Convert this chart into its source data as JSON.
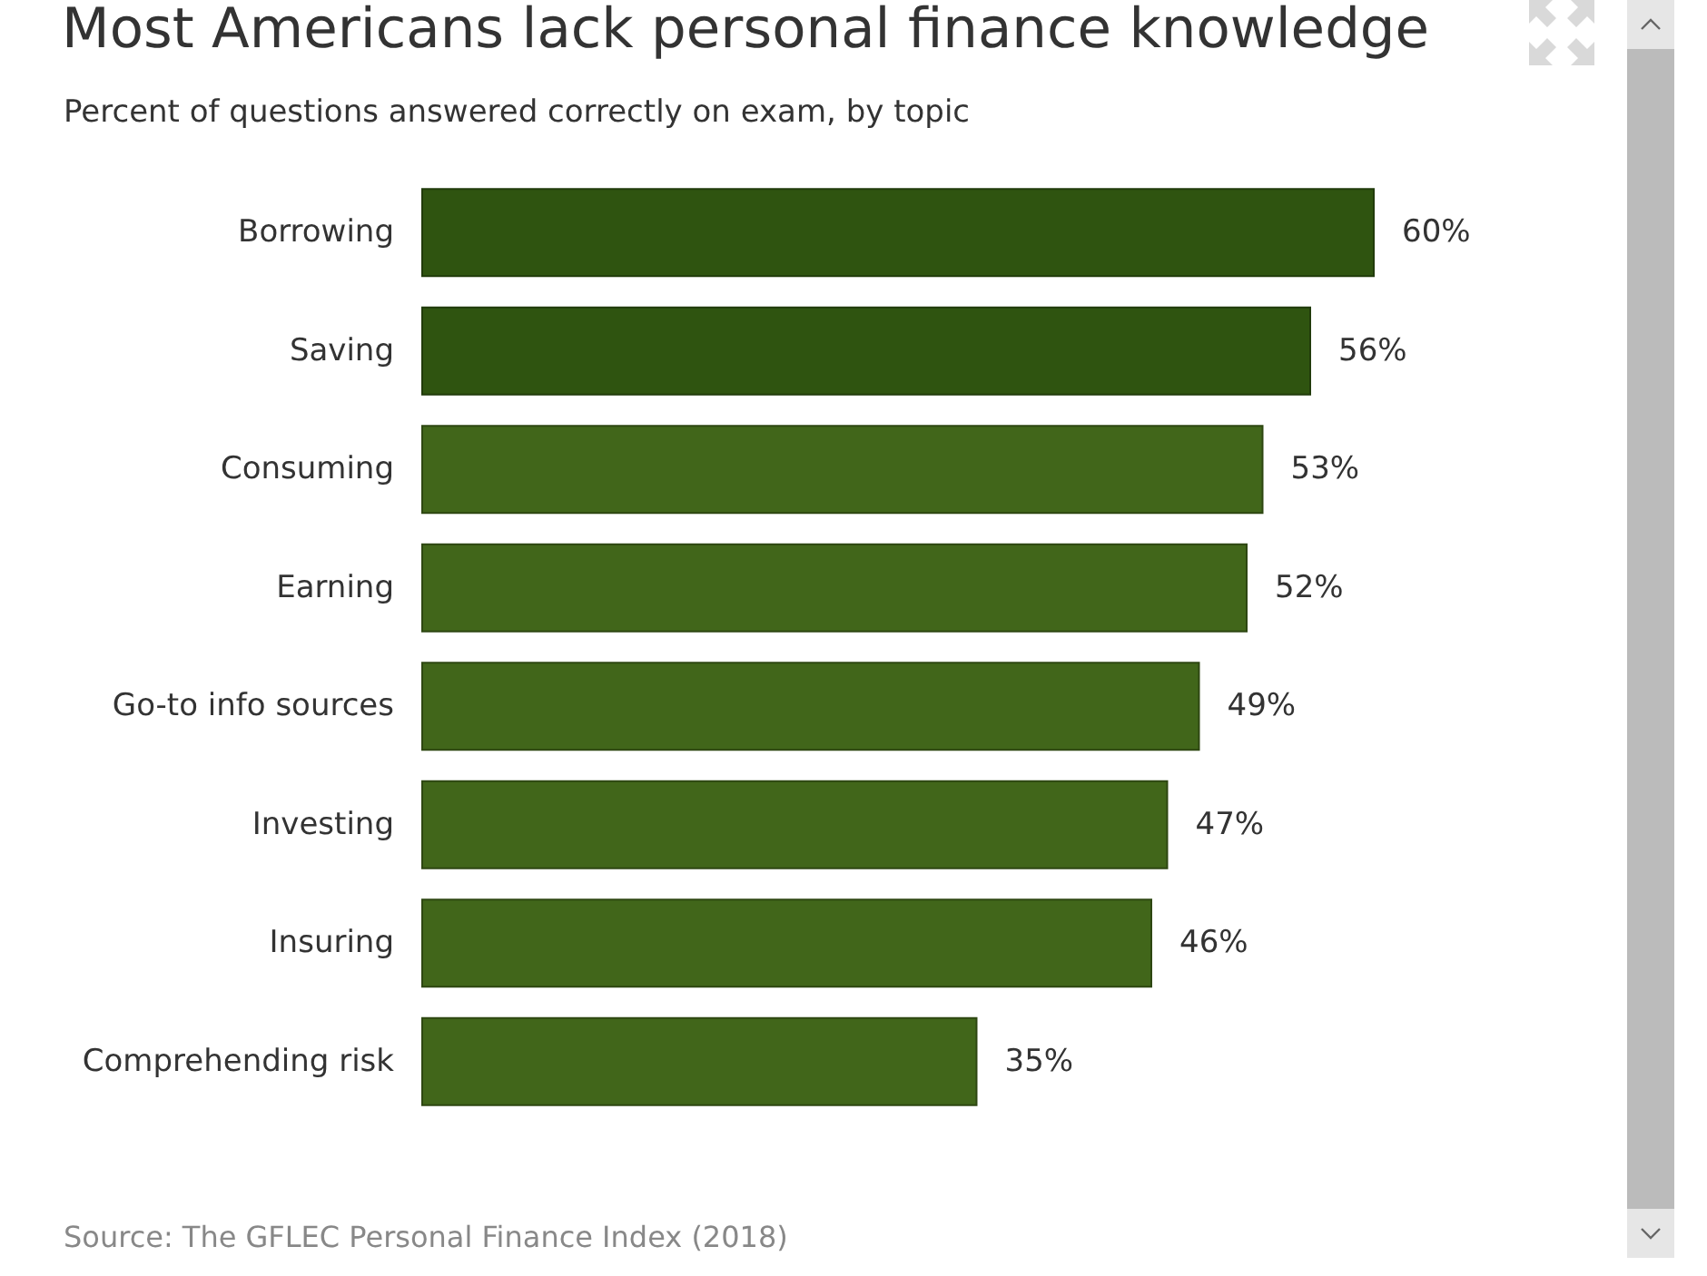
{
  "chart_data": {
    "type": "bar",
    "orientation": "horizontal",
    "title": "Most Americans lack personal finance knowledge",
    "subtitle": "Percent of questions answered correctly on exam, by topic",
    "categories": [
      "Borrowing",
      "Saving",
      "Consuming",
      "Earning",
      "Go-to info sources",
      "Investing",
      "Insuring",
      "Comprehending risk"
    ],
    "values": [
      60,
      56,
      53,
      52,
      49,
      47,
      46,
      35
    ],
    "value_labels": [
      "60%",
      "56%",
      "53%",
      "52%",
      "49%",
      "47%",
      "46%",
      "35%"
    ],
    "colors": [
      "#2f5410",
      "#2f5410",
      "#41661a",
      "#41661a",
      "#41661a",
      "#41661a",
      "#41661a",
      "#41661a"
    ],
    "xlim": [
      0,
      60
    ],
    "annotations": [
      "Source: The GFLEC Personal Finance Index (2018)"
    ]
  }
}
